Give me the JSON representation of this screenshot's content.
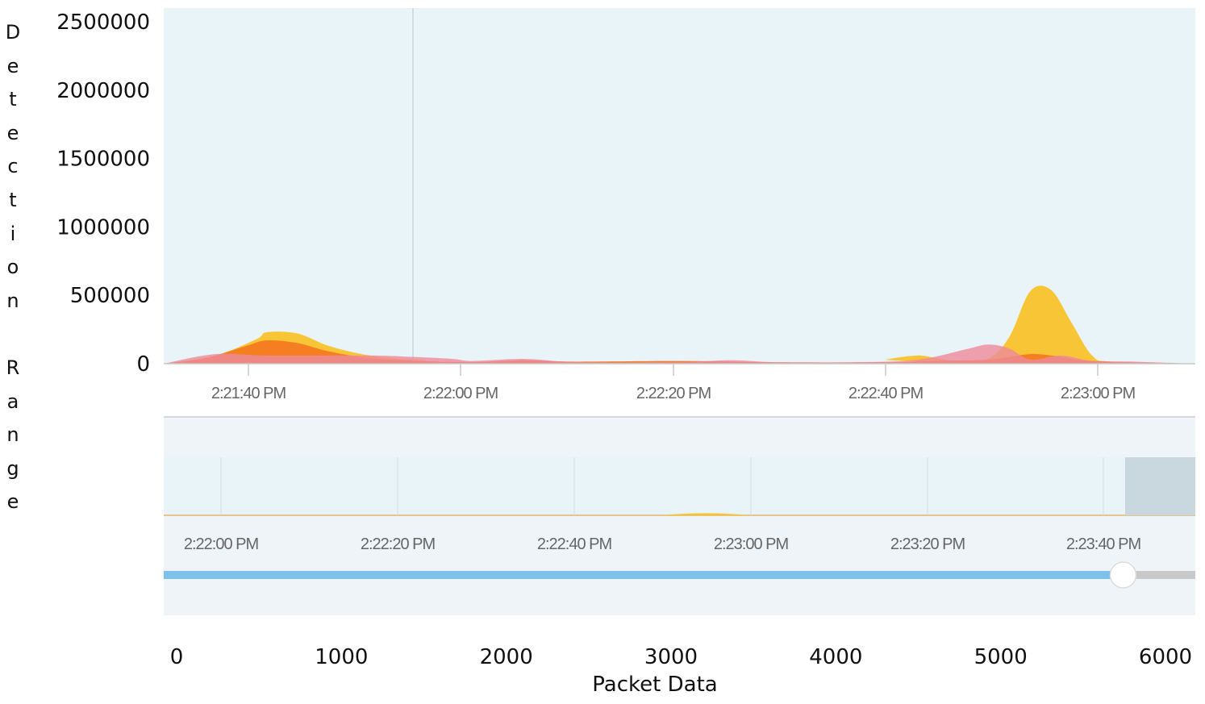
{
  "chart_data": {
    "type": "area",
    "ylabel": "Detection Range",
    "xlabel": "Packet Data",
    "y_ticks": [
      "2500000",
      "2000000",
      "1500000",
      "1000000",
      "500000",
      "0"
    ],
    "ylim": [
      0,
      2600000
    ],
    "main_time_ticks": [
      "2:21:40 PM",
      "2:22:00 PM",
      "2:22:20 PM",
      "2:22:40 PM",
      "2:23:00 PM"
    ],
    "navigator_time_ticks": [
      "2:22:00 PM",
      "2:22:20 PM",
      "2:22:40 PM",
      "2:23:00 PM",
      "2:23:20 PM",
      "2:23:40 PM"
    ],
    "bottom_x_ticks": [
      "0",
      "1000",
      "2000",
      "3000",
      "4000",
      "5000",
      "6000"
    ],
    "slider_value": 0.93,
    "colors": {
      "yellow": "#f9c22b",
      "orange": "#f47b20",
      "pink": "#ee8a9b",
      "plot_bg": "#e8f4f8",
      "nav_bg": "#eef4f7",
      "slider": "#7cc2ea"
    },
    "series": [
      {
        "color": "yellow",
        "x": [
          0,
          0.05,
          0.09,
          0.1,
          0.13,
          0.16,
          0.2,
          0.25,
          0.3,
          0.7,
          0.7,
          0.73,
          0.75,
          0.77,
          0.8,
          0.82,
          0.84,
          0.86,
          0.88,
          0.9,
          0.92,
          1.0
        ],
        "values": [
          0,
          60000,
          180000,
          230000,
          220000,
          130000,
          60000,
          25000,
          10000,
          10000,
          30000,
          60000,
          40000,
          20000,
          40000,
          200000,
          530000,
          540000,
          300000,
          60000,
          15000,
          0
        ]
      },
      {
        "color": "orange",
        "x": [
          0,
          0.04,
          0.08,
          0.1,
          0.13,
          0.16,
          0.2,
          0.25,
          0.3,
          0.35,
          0.4,
          0.5,
          0.6,
          0.7,
          0.75,
          0.8,
          0.84,
          0.87,
          0.9,
          1.0
        ],
        "values": [
          0,
          40000,
          130000,
          170000,
          150000,
          90000,
          40000,
          20000,
          12000,
          25000,
          15000,
          20000,
          10000,
          10000,
          20000,
          30000,
          70000,
          50000,
          20000,
          0
        ]
      },
      {
        "color": "pink",
        "x": [
          0,
          0.05,
          0.1,
          0.2,
          0.24,
          0.28,
          0.3,
          0.35,
          0.4,
          0.5,
          0.55,
          0.6,
          0.7,
          0.74,
          0.78,
          0.8,
          0.82,
          0.84,
          0.87,
          0.9,
          0.94,
          1.0
        ],
        "values": [
          0,
          70000,
          60000,
          60000,
          50000,
          35000,
          20000,
          35000,
          12000,
          12000,
          25000,
          10000,
          15000,
          40000,
          110000,
          140000,
          110000,
          30000,
          60000,
          20000,
          15000,
          0
        ]
      }
    ]
  }
}
